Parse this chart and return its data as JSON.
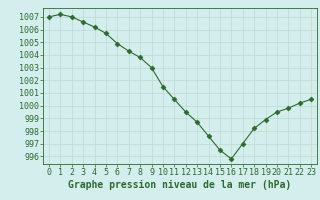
{
  "x": [
    0,
    1,
    2,
    3,
    4,
    5,
    6,
    7,
    8,
    9,
    10,
    11,
    12,
    13,
    14,
    15,
    16,
    17,
    18,
    19,
    20,
    21,
    22,
    23
  ],
  "y": [
    1007.0,
    1007.2,
    1007.0,
    1006.6,
    1006.2,
    1005.7,
    1004.9,
    1004.3,
    1003.8,
    1003.0,
    1001.5,
    1000.5,
    999.5,
    998.7,
    997.6,
    996.5,
    995.8,
    997.0,
    998.2,
    998.9,
    999.5,
    999.8,
    1000.2,
    1000.5
  ],
  "line_color": "#2d6a2d",
  "marker": "D",
  "marker_size": 2.5,
  "bg_color": "#d4eeee",
  "grid_color": "#c0d8d0",
  "ylabel_values": [
    996,
    997,
    998,
    999,
    1000,
    1001,
    1002,
    1003,
    1004,
    1005,
    1006,
    1007
  ],
  "xlabel": "Graphe pression niveau de la mer (hPa)",
  "xlabel_color": "#2d6a2d",
  "xlabel_fontsize": 7,
  "tick_label_color": "#2d6a2d",
  "tick_label_fontsize": 6,
  "ylim": [
    995.4,
    1007.7
  ],
  "xlim": [
    -0.5,
    23.5
  ]
}
